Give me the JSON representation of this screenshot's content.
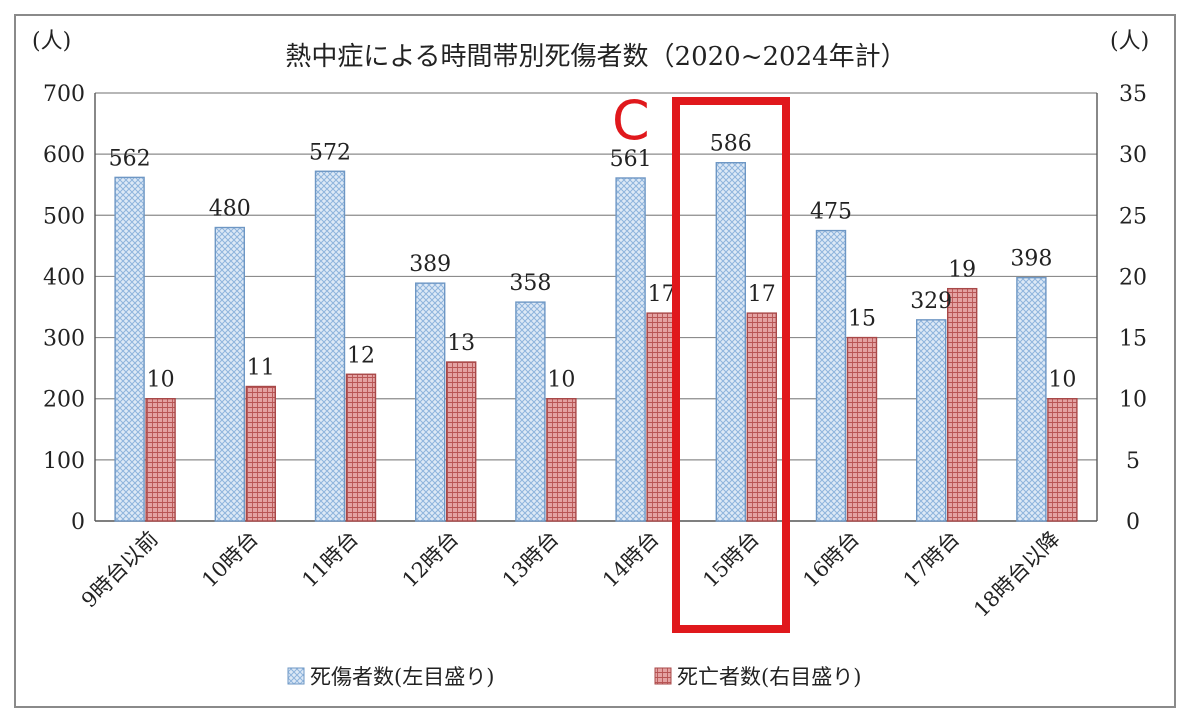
{
  "chart_data": {
    "type": "bar",
    "title": "熱中症による時間帯別死傷者数（2020~2024年計）",
    "left_unit": "(人)",
    "right_unit": "(人)",
    "categories": [
      "9時台以前",
      "10時台",
      "11時台",
      "12時台",
      "13時台",
      "14時台",
      "15時台",
      "16時台",
      "17時台",
      "18時台以降"
    ],
    "series": [
      {
        "name": "死傷者数(左目盛り)",
        "axis": "left",
        "color": "#8fb4dc",
        "values": [
          562,
          480,
          572,
          389,
          358,
          561,
          586,
          475,
          329,
          398
        ]
      },
      {
        "name": "死亡者数(右目盛り)",
        "axis": "right",
        "color": "#c96a6a",
        "values": [
          10,
          11,
          12,
          13,
          10,
          17,
          17,
          15,
          19,
          10
        ]
      }
    ],
    "ylim_left": [
      0,
      700
    ],
    "ylim_right": [
      0,
      35
    ],
    "yticks_left": [
      "0",
      "100",
      "200",
      "300",
      "400",
      "500",
      "600",
      "700"
    ],
    "yticks_right": [
      "0",
      "5",
      "10",
      "15",
      "20",
      "25",
      "30",
      "35"
    ],
    "grid": true,
    "legend_position": "bottom"
  },
  "annotation": {
    "label": "C",
    "highlight_category": "15時台",
    "color": "#e0181c"
  }
}
